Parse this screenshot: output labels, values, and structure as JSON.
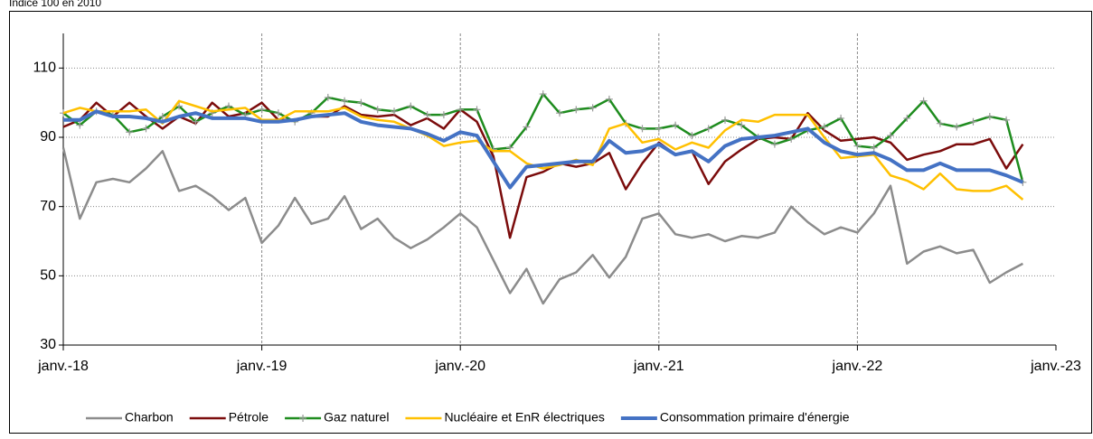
{
  "chart_data": {
    "type": "line",
    "subtitle": "Indice 100 en 2010",
    "x": [
      "2018-01",
      "2018-02",
      "2018-03",
      "2018-04",
      "2018-05",
      "2018-06",
      "2018-07",
      "2018-08",
      "2018-09",
      "2018-10",
      "2018-11",
      "2018-12",
      "2019-01",
      "2019-02",
      "2019-03",
      "2019-04",
      "2019-05",
      "2019-06",
      "2019-07",
      "2019-08",
      "2019-09",
      "2019-10",
      "2019-11",
      "2019-12",
      "2020-01",
      "2020-02",
      "2020-03",
      "2020-04",
      "2020-05",
      "2020-06",
      "2020-07",
      "2020-08",
      "2020-09",
      "2020-10",
      "2020-11",
      "2020-12",
      "2021-01",
      "2021-02",
      "2021-03",
      "2021-04",
      "2021-05",
      "2021-06",
      "2021-07",
      "2021-08",
      "2021-09",
      "2021-10",
      "2021-11",
      "2021-12",
      "2022-01",
      "2022-02",
      "2022-03",
      "2022-04",
      "2022-05",
      "2022-06",
      "2022-07",
      "2022-08",
      "2022-09",
      "2022-10",
      "2022-11"
    ],
    "xlim": [
      "2018-01",
      "2023-01"
    ],
    "xticks": [
      {
        "value": "2018-01",
        "label": "janv.-18"
      },
      {
        "value": "2019-01",
        "label": "janv.-19"
      },
      {
        "value": "2020-01",
        "label": "janv.-20"
      },
      {
        "value": "2021-01",
        "label": "janv.-21"
      },
      {
        "value": "2022-01",
        "label": "janv.-22"
      },
      {
        "value": "2023-01",
        "label": "janv.-23"
      }
    ],
    "ylim": [
      30,
      120
    ],
    "yticks": [
      30,
      50,
      70,
      90,
      110
    ],
    "grid": true,
    "legend": "bottom",
    "series": [
      {
        "name": "Charbon",
        "color": "#8c8c8c",
        "width": 2.5,
        "values": [
          87,
          66.5,
          77,
          78,
          77,
          81,
          86,
          74.5,
          76,
          73,
          69,
          72.5,
          59.5,
          64.5,
          72.5,
          65,
          66.5,
          73,
          63.5,
          66.5,
          61,
          58,
          60.5,
          64,
          68,
          64,
          54.5,
          45,
          52,
          42,
          49,
          51,
          56,
          49.5,
          55.5,
          66.5,
          68,
          62,
          61,
          62,
          60,
          61.5,
          61,
          62.5,
          70,
          65.5,
          62,
          64,
          62.5,
          68,
          76,
          53.5,
          57,
          58.5,
          56.5,
          57.5,
          48,
          51,
          53.5
        ]
      },
      {
        "name": "Pétrole",
        "color": "#7b0c0c",
        "width": 2.5,
        "values": [
          93,
          95,
          100,
          96,
          100,
          96,
          92.5,
          96,
          94,
          100,
          96,
          97,
          100,
          95,
          95,
          96,
          96,
          99,
          96.5,
          96,
          96.5,
          93.5,
          95.5,
          92.5,
          98,
          94.5,
          84.5,
          61,
          78.5,
          80,
          82.5,
          81.5,
          82.5,
          85.5,
          75,
          82.5,
          88.5,
          85,
          86,
          76.5,
          83,
          86.5,
          89.5,
          90,
          89.5,
          97,
          92,
          89,
          89.5,
          90,
          88.5,
          83.5,
          85,
          86,
          88,
          88,
          89.5,
          81,
          88
        ]
      },
      {
        "name": "Gaz naturel",
        "color": "#1e8c1e",
        "width": 2.5,
        "marker": "+",
        "values": [
          97,
          93.5,
          97.5,
          96.5,
          91.5,
          92.5,
          96,
          99,
          94.5,
          97,
          99,
          96.5,
          98,
          97,
          94.5,
          97,
          101.5,
          100.5,
          100,
          98,
          97.5,
          99,
          96.5,
          96.5,
          98,
          98,
          86.5,
          87,
          93,
          102.5,
          97,
          98,
          98.5,
          101,
          94,
          92.5,
          92.5,
          93.5,
          90.5,
          92.5,
          95,
          93.5,
          90,
          88,
          89.5,
          92,
          93,
          95.5,
          87.5,
          87,
          90.5,
          95.5,
          100.5,
          94,
          93,
          94.5,
          96,
          95,
          77
        ]
      },
      {
        "name": "Nucléaire et EnR électriques",
        "color": "#ffc000",
        "width": 2.5,
        "values": [
          97,
          98.5,
          97.5,
          97.5,
          97.5,
          98,
          94,
          100.5,
          99,
          97.5,
          98,
          98.5,
          95,
          95,
          97.5,
          97.5,
          97.5,
          98.5,
          96,
          95,
          94.5,
          92.5,
          90.5,
          87.5,
          88.5,
          89,
          86,
          86,
          82.5,
          81,
          82,
          83.5,
          82,
          92.5,
          94,
          88.5,
          89.5,
          86.5,
          88.5,
          87,
          92,
          95,
          94.5,
          96.5,
          96.5,
          96.5,
          90,
          84,
          84.5,
          85,
          79,
          77.5,
          75,
          79.5,
          75,
          74.5,
          74.5,
          76,
          72
        ]
      },
      {
        "name": "Consommation primaire d'énergie",
        "color": "#4472c4",
        "width": 4,
        "values": [
          95,
          95,
          97.5,
          96,
          96,
          95.5,
          94.5,
          96,
          97,
          95.5,
          95.5,
          95.5,
          94.5,
          94.5,
          95,
          96,
          96.5,
          97,
          94.5,
          93.5,
          93,
          92.5,
          91,
          89,
          91.5,
          90.5,
          83,
          75.5,
          81.5,
          82,
          82.5,
          83,
          83,
          89,
          85.5,
          86,
          88,
          85,
          86,
          83,
          87.5,
          89.5,
          90,
          90.5,
          91.5,
          92.5,
          88.5,
          86,
          85,
          85.5,
          83.5,
          80.5,
          80.5,
          82.5,
          80.5,
          80.5,
          80.5,
          79,
          77
        ]
      }
    ]
  }
}
